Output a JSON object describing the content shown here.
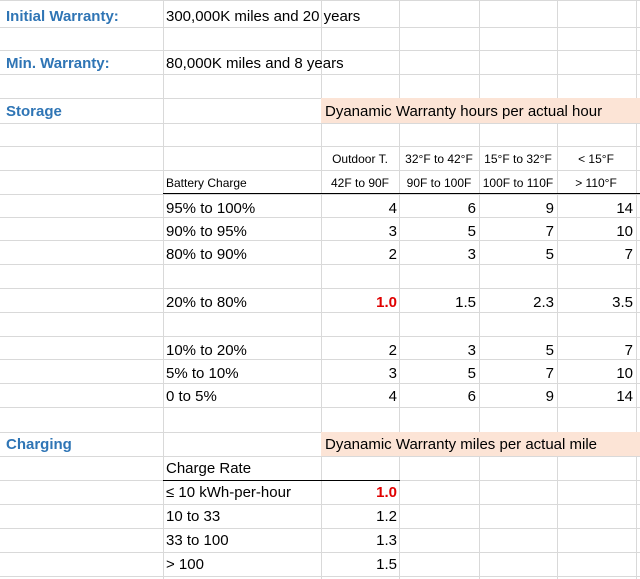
{
  "initial_warranty": {
    "label": "Initial Warranty:",
    "value": "300,000K miles and 20 years"
  },
  "min_warranty": {
    "label": "Min. Warranty:",
    "value": "80,000K miles and 8 years"
  },
  "storage": {
    "label": "Storage",
    "banner": "Dyanamic Warranty hours per actual hour",
    "col_headers_top": [
      "Outdoor T.",
      "32°F to 42°F",
      "15°F to 32°F",
      "< 15°F"
    ],
    "row_header_label": "Battery Charge",
    "col_headers_bottom": [
      "42F to 90F",
      "90F to 100F",
      "100F to 110F",
      "> 110°F"
    ],
    "rows": [
      {
        "label": "95% to 100%",
        "values": [
          "4",
          "6",
          "9",
          "14"
        ]
      },
      {
        "label": "90% to 95%",
        "values": [
          "3",
          "5",
          "7",
          "10"
        ]
      },
      {
        "label": "80% to 90%",
        "values": [
          "2",
          "3",
          "5",
          "7"
        ]
      },
      {
        "label": "20% to 80%",
        "values": [
          "1.0",
          "1.5",
          "2.3",
          "3.5"
        ]
      },
      {
        "label": "10% to 20%",
        "values": [
          "2",
          "3",
          "5",
          "7"
        ]
      },
      {
        "label": "5% to 10%",
        "values": [
          "3",
          "5",
          "7",
          "10"
        ]
      },
      {
        "label": "0 to 5%",
        "values": [
          "4",
          "6",
          "9",
          "14"
        ]
      }
    ]
  },
  "charging": {
    "label": "Charging",
    "banner": "Dyanamic Warranty miles per actual mile",
    "header": "Charge Rate",
    "rows": [
      {
        "label": "≤ 10 kWh-per-hour",
        "value": "1.0"
      },
      {
        "label": "10 to 33",
        "value": "1.2"
      },
      {
        "label": "33 to 100",
        "value": "1.3"
      },
      {
        "label": "> 100",
        "value": "1.5"
      }
    ]
  },
  "colors": {
    "section": "#2f75b5",
    "highlight": "#fce4d6",
    "accent_value": "#e00000",
    "gridline": "#d9d9d9"
  }
}
